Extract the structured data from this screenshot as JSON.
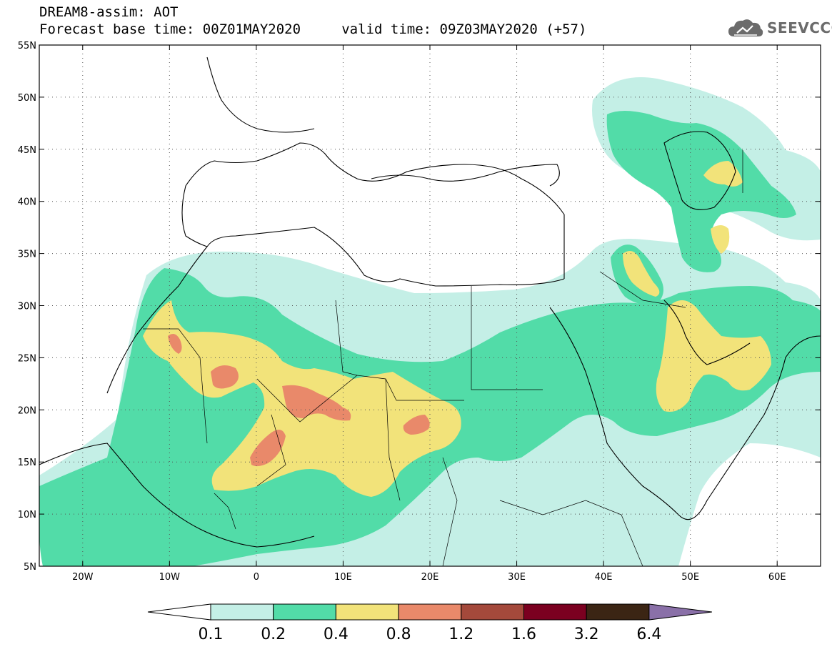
{
  "title": {
    "line1": "DREAM8-assim: AOT",
    "line2": "Forecast base time: 00Z01MAY2020     valid time: 09Z03MAY2020 (+57)"
  },
  "logo": {
    "text": "SEEVCCC",
    "icon": "cloud-icon"
  },
  "map": {
    "lon_range": [
      -25,
      65
    ],
    "lat_range": [
      5,
      55
    ],
    "lat_labels": [
      "55N",
      "50N",
      "45N",
      "40N",
      "35N",
      "30N",
      "25N",
      "20N",
      "15N",
      "10N",
      "5N"
    ],
    "lat_values": [
      55,
      50,
      45,
      40,
      35,
      30,
      25,
      20,
      15,
      10,
      5
    ],
    "lon_labels": [
      "20W",
      "10W",
      "0",
      "10E",
      "20E",
      "30E",
      "40E",
      "50E",
      "60E"
    ],
    "lon_values": [
      -20,
      -10,
      0,
      10,
      20,
      30,
      40,
      50,
      60
    ],
    "grid": "dotted"
  },
  "colorbar": {
    "levels": [
      "0.1",
      "0.2",
      "0.4",
      "0.8",
      "1.2",
      "1.6",
      "3.2",
      "6.4"
    ],
    "colors": [
      "#ffffff",
      "#c4efe6",
      "#52dca8",
      "#f2e37a",
      "#e9896a",
      "#a4493b",
      "#7b0020",
      "#3b2514",
      "#8a70a8"
    ]
  }
}
